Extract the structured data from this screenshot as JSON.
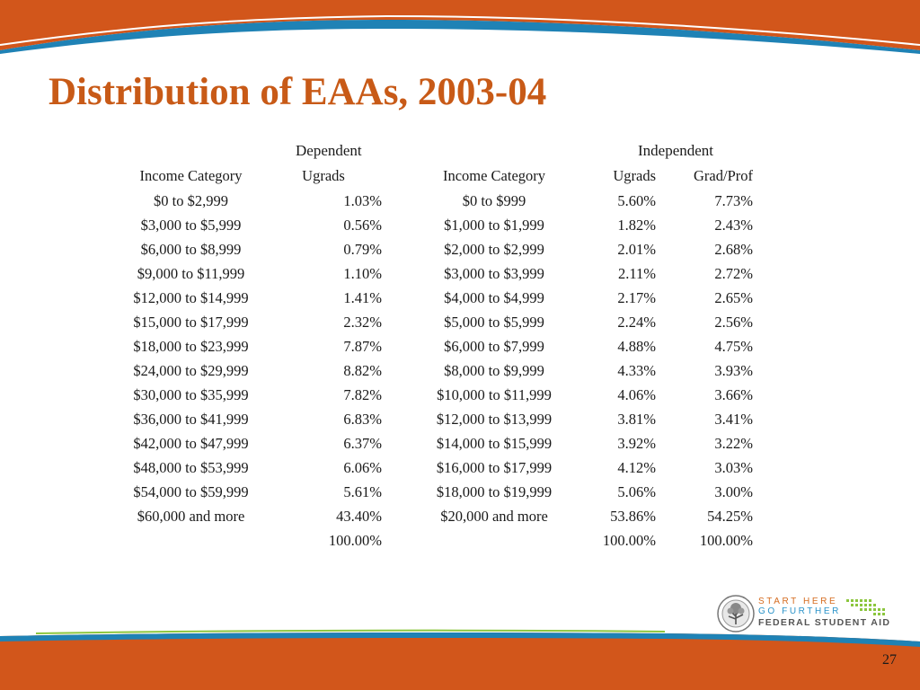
{
  "slide": {
    "title": "Distribution of EAAs, 2003-04",
    "page_number": "27"
  },
  "groups": {
    "dependent": "Dependent",
    "independent": "Independent"
  },
  "headers": {
    "dep_income": "Income Category",
    "dep_ugrads": "Ugrads",
    "ind_income": "Income Category",
    "ind_ugrads": "Ugrads",
    "ind_gradprof": "Grad/Prof"
  },
  "rows": [
    {
      "dep_income": "$0 to $2,999",
      "dep_ugrads": "1.03%",
      "ind_income": "$0 to $999",
      "ind_ugrads": "5.60%",
      "ind_gradprof": "7.73%"
    },
    {
      "dep_income": "$3,000 to $5,999",
      "dep_ugrads": "0.56%",
      "ind_income": "$1,000 to $1,999",
      "ind_ugrads": "1.82%",
      "ind_gradprof": "2.43%"
    },
    {
      "dep_income": "$6,000 to $8,999",
      "dep_ugrads": "0.79%",
      "ind_income": "$2,000 to $2,999",
      "ind_ugrads": "2.01%",
      "ind_gradprof": "2.68%"
    },
    {
      "dep_income": "$9,000 to $11,999",
      "dep_ugrads": "1.10%",
      "ind_income": "$3,000 to $3,999",
      "ind_ugrads": "2.11%",
      "ind_gradprof": "2.72%"
    },
    {
      "dep_income": "$12,000 to $14,999",
      "dep_ugrads": "1.41%",
      "ind_income": "$4,000 to $4,999",
      "ind_ugrads": "2.17%",
      "ind_gradprof": "2.65%"
    },
    {
      "dep_income": "$15,000 to $17,999",
      "dep_ugrads": "2.32%",
      "ind_income": "$5,000 to $5,999",
      "ind_ugrads": "2.24%",
      "ind_gradprof": "2.56%"
    },
    {
      "dep_income": "$18,000 to $23,999",
      "dep_ugrads": "7.87%",
      "ind_income": "$6,000 to $7,999",
      "ind_ugrads": "4.88%",
      "ind_gradprof": "4.75%"
    },
    {
      "dep_income": "$24,000 to $29,999",
      "dep_ugrads": "8.82%",
      "ind_income": "$8,000 to $9,999",
      "ind_ugrads": "4.33%",
      "ind_gradprof": "3.93%"
    },
    {
      "dep_income": "$30,000 to $35,999",
      "dep_ugrads": "7.82%",
      "ind_income": "$10,000 to $11,999",
      "ind_ugrads": "4.06%",
      "ind_gradprof": "3.66%"
    },
    {
      "dep_income": "$36,000 to $41,999",
      "dep_ugrads": "6.83%",
      "ind_income": "$12,000 to $13,999",
      "ind_ugrads": "3.81%",
      "ind_gradprof": "3.41%"
    },
    {
      "dep_income": "$42,000 to $47,999",
      "dep_ugrads": "6.37%",
      "ind_income": "$14,000 to $15,999",
      "ind_ugrads": "3.92%",
      "ind_gradprof": "3.22%"
    },
    {
      "dep_income": "$48,000 to $53,999",
      "dep_ugrads": "6.06%",
      "ind_income": "$16,000 to $17,999",
      "ind_ugrads": "4.12%",
      "ind_gradprof": "3.03%"
    },
    {
      "dep_income": "$54,000 to $59,999",
      "dep_ugrads": "5.61%",
      "ind_income": "$18,000 to $19,999",
      "ind_ugrads": "5.06%",
      "ind_gradprof": "3.00%"
    },
    {
      "dep_income": "$60,000 and more",
      "dep_ugrads": "43.40%",
      "ind_income": "$20,000 and more",
      "ind_ugrads": "53.86%",
      "ind_gradprof": "54.25%"
    }
  ],
  "totals": {
    "dep_ugrads": "100.00%",
    "ind_ugrads": "100.00%",
    "ind_gradprof": "100.00%"
  },
  "logo": {
    "line1": "START HERE",
    "line2": "GO FURTHER",
    "line3": "FEDERAL STUDENT AID"
  },
  "colors": {
    "title": "#c85a17",
    "banner_orange": "#d2561b",
    "banner_blue": "#1f82b5"
  }
}
